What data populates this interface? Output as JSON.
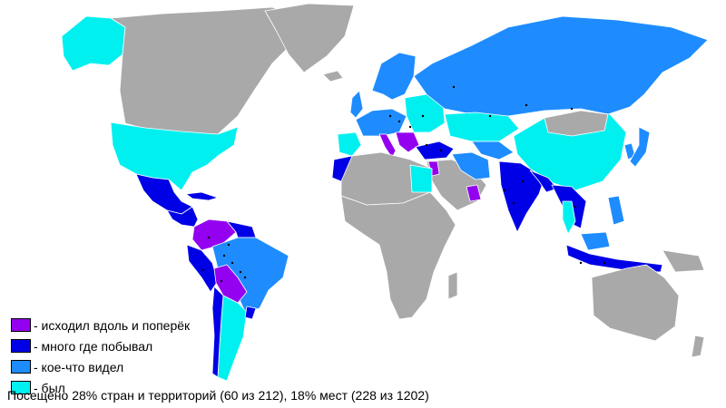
{
  "colors": {
    "background": "#ffffff",
    "unvisited": "#a9a9a9",
    "traveled_across": "#9400f0",
    "visited_many": "#0000e6",
    "seen_some": "#1e8cff",
    "been": "#00f0f0",
    "dot": "#000000"
  },
  "legend": {
    "items": [
      {
        "label": "- исходил вдоль и поперёк",
        "color": "#9400f0"
      },
      {
        "label": "- много где побывал",
        "color": "#0000e6"
      },
      {
        "label": "- кое-что видел",
        "color": "#1e8cff"
      },
      {
        "label": "- был",
        "color": "#00f0f0"
      }
    ]
  },
  "summary": "Посещено 28% стран и территорий (60 из 212), 18% мест (228 из 1202)"
}
